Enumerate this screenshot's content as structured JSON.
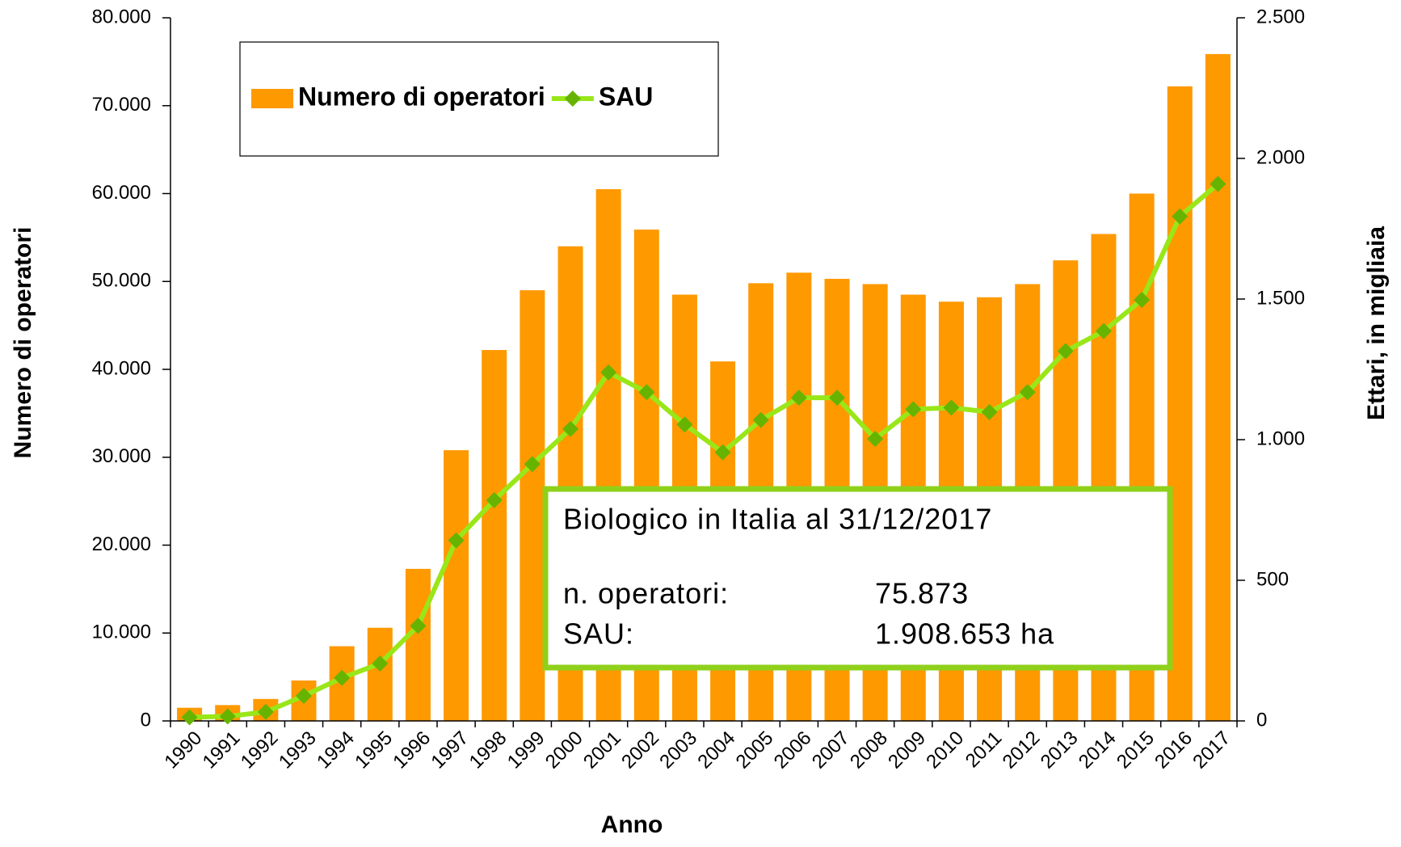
{
  "chart_data": {
    "type": "bar",
    "y_label": "Numero di operatori",
    "y2_label": "Ettari, in migliaia",
    "x_label": "Anno",
    "categories": [
      "1990",
      "1991",
      "1992",
      "1993",
      "1994",
      "1995",
      "1996",
      "1997",
      "1998",
      "1999",
      "2000",
      "2001",
      "2002",
      "2003",
      "2004",
      "2005",
      "2006",
      "2007",
      "2008",
      "2009",
      "2010",
      "2011",
      "2012",
      "2013",
      "2014",
      "2015",
      "2016",
      "2017"
    ],
    "series": [
      {
        "name": "Numero di operatori",
        "type": "bar",
        "color": "#ff9900",
        "values": [
          1500,
          1800,
          2500,
          4600,
          8500,
          10600,
          17300,
          30800,
          42200,
          49000,
          54000,
          60500,
          55900,
          48500,
          40900,
          49800,
          51000,
          50300,
          49700,
          48500,
          47700,
          48200,
          49700,
          52400,
          55400,
          60000,
          72200,
          75873
        ]
      },
      {
        "name": "SAU",
        "type": "line",
        "axis": "y2",
        "color": "#99e619",
        "marker_color": "#66b300",
        "values": [
          13,
          16,
          32,
          89,
          153,
          204,
          338,
          642,
          785,
          913,
          1038,
          1239,
          1169,
          1054,
          955,
          1070,
          1149,
          1149,
          1003,
          1108,
          1114,
          1098,
          1169,
          1315,
          1386,
          1497,
          1794,
          1909
        ]
      }
    ],
    "ylim": [
      0,
      80000
    ],
    "yticks": [
      0,
      {
        "value": 10000,
        "label": "10.000"
      },
      {
        "value": 20000,
        "label": "20.000"
      },
      {
        "value": 30000,
        "label": "30.000"
      },
      {
        "value": 40000,
        "label": "40.000"
      },
      {
        "value": 50000,
        "label": "50.000"
      },
      {
        "value": 60000,
        "label": "60.000"
      },
      {
        "value": 70000,
        "label": "70.000"
      },
      {
        "value": 80000,
        "label": "80.000"
      }
    ],
    "y2lim": [
      0,
      2500
    ],
    "y2ticks": [
      0,
      500,
      {
        "value": 1000,
        "label": "1.000"
      },
      {
        "value": 1500,
        "label": "1.500"
      },
      {
        "value": 2000,
        "label": "2.000"
      },
      {
        "value": 2500,
        "label": "2.500"
      }
    ],
    "annotation": {
      "title": "Biologico in Italia al 31/12/2017",
      "rows": [
        [
          "n. operatori:",
          "75.873"
        ],
        [
          "SAU:",
          "1.908.653  ha"
        ]
      ]
    }
  }
}
